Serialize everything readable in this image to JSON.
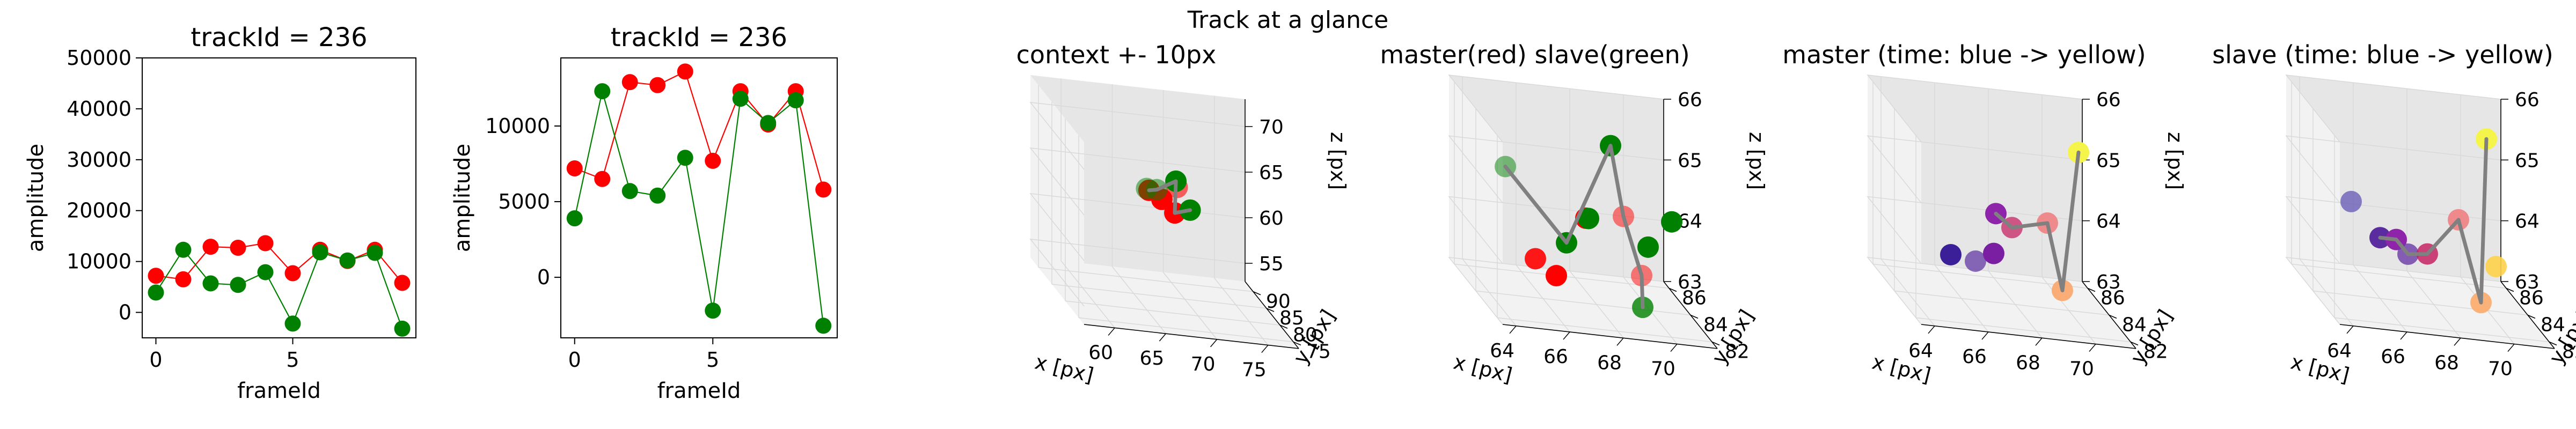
{
  "suptitle": "Track at a glance",
  "colors": {
    "master": "#ff0000",
    "slave": "#008000",
    "link": "#808080",
    "axis": "#000000",
    "pane": "#f2f2f2",
    "pane_dark": "#e6e6e6",
    "grid": "#d9d9d9"
  },
  "chart_data": [
    {
      "type": "line",
      "title": "trackId = 236",
      "xlabel": "frameId",
      "ylabel": "amplitude",
      "xlim": [
        -0.5,
        9.5
      ],
      "ylim": [
        -5000,
        50000
      ],
      "xticks": [
        0,
        5
      ],
      "yticks": [
        0,
        10000,
        20000,
        30000,
        40000,
        50000
      ],
      "x": [
        0,
        1,
        2,
        3,
        4,
        5,
        6,
        7,
        8,
        9
      ],
      "series": [
        {
          "color": "#ff0000",
          "values": [
            7200,
            6500,
            12900,
            12700,
            13600,
            7700,
            12300,
            10100,
            12300,
            5800
          ]
        },
        {
          "color": "#008000",
          "values": [
            3900,
            12300,
            5700,
            5400,
            7900,
            -2200,
            11800,
            10200,
            11700,
            -3200
          ]
        }
      ]
    },
    {
      "type": "line",
      "title": "trackId = 236",
      "xlabel": "frameId",
      "ylabel": "amplitude",
      "xlim": [
        -0.5,
        9.5
      ],
      "ylim": [
        -4000,
        14500
      ],
      "xticks": [
        0,
        5
      ],
      "yticks": [
        0,
        5000,
        10000
      ],
      "x": [
        0,
        1,
        2,
        3,
        4,
        5,
        6,
        7,
        8,
        9
      ],
      "series": [
        {
          "color": "#ff0000",
          "values": [
            7200,
            6500,
            12900,
            12700,
            13600,
            7700,
            12300,
            10100,
            12300,
            5800
          ]
        },
        {
          "color": "#008000",
          "values": [
            3900,
            12300,
            5700,
            5400,
            7900,
            -2200,
            11800,
            10200,
            11700,
            -3200
          ]
        }
      ]
    },
    {
      "type": "scatter3d",
      "title": "context +- 10px",
      "xlabel": "x [px]",
      "ylabel": "y [px]",
      "zlabel": "z [px]",
      "xlim": [
        57,
        78
      ],
      "ylim": [
        73,
        93
      ],
      "zlim": [
        53,
        73
      ],
      "xticks": [
        60,
        65,
        70,
        75
      ],
      "yticks": [
        75,
        80,
        85,
        90
      ],
      "zticks": [
        55,
        60,
        65,
        70
      ],
      "points": [
        {
          "x": 67.5,
          "y": 84,
          "z": 64,
          "color": "#ff0000",
          "alpha": 1
        },
        {
          "x": 68.5,
          "y": 83,
          "z": 63,
          "color": "#ff0000",
          "alpha": 1
        },
        {
          "x": 66.5,
          "y": 85,
          "z": 64.5,
          "color": "#ff0000",
          "alpha": 1
        },
        {
          "x": 69,
          "y": 84,
          "z": 65.5,
          "color": "#ff0000",
          "alpha": 0.6
        },
        {
          "x": 66,
          "y": 84,
          "z": 65,
          "color": "#008000",
          "alpha": 0.5
        },
        {
          "x": 69,
          "y": 84.5,
          "z": 66,
          "color": "#008000",
          "alpha": 1
        },
        {
          "x": 70,
          "y": 83,
          "z": 63.5,
          "color": "#008000",
          "alpha": 1
        },
        {
          "x": 67,
          "y": 84,
          "z": 65,
          "color": "#008000",
          "alpha": 0.5
        }
      ],
      "path": [
        [
          66.5,
          85,
          64.5
        ],
        [
          67,
          84,
          65
        ],
        [
          69,
          84.5,
          66
        ],
        [
          68.5,
          83,
          63
        ],
        [
          70,
          83,
          63.5
        ]
      ]
    },
    {
      "type": "scatter3d",
      "title": "master(red) slave(green)",
      "xlabel": "x [px]",
      "ylabel": "y [px]",
      "zlabel": "z [px]",
      "xlim": [
        63.5,
        71.5
      ],
      "ylim": [
        81.5,
        86.5
      ],
      "zlim": [
        63,
        66
      ],
      "xticks": [
        64,
        66,
        68,
        70
      ],
      "yticks": [
        82,
        84,
        86
      ],
      "zticks": [
        63,
        64,
        65,
        66
      ],
      "points": [
        {
          "x": 66.5,
          "y": 84,
          "z": 63.4,
          "color": "#ff0000",
          "alpha": 1
        },
        {
          "x": 65.8,
          "y": 84.2,
          "z": 63.6,
          "color": "#ff0000",
          "alpha": 0.9
        },
        {
          "x": 67.6,
          "y": 84,
          "z": 64.4,
          "color": "#ff0000",
          "alpha": 1
        },
        {
          "x": 68.4,
          "y": 82.5,
          "z": 64.8,
          "color": "#ff0000",
          "alpha": 0.5
        },
        {
          "x": 69.2,
          "y": 82.8,
          "z": 63.8,
          "color": "#ff0000",
          "alpha": 0.5
        },
        {
          "x": 65.2,
          "y": 85.5,
          "z": 64.8,
          "color": "#008000",
          "alpha": 0.5
        },
        {
          "x": 66.8,
          "y": 83.8,
          "z": 64.0,
          "color": "#008000",
          "alpha": 1
        },
        {
          "x": 67.5,
          "y": 83.5,
          "z": 64.5,
          "color": "#008000",
          "alpha": 1
        },
        {
          "x": 68.2,
          "y": 83.2,
          "z": 65.8,
          "color": "#008000",
          "alpha": 1
        },
        {
          "x": 69.6,
          "y": 83.2,
          "z": 64.2,
          "color": "#008000",
          "alpha": 1
        },
        {
          "x": 70.2,
          "y": 82.5,
          "z": 64.8,
          "color": "#008000",
          "alpha": 1
        },
        {
          "x": 69.0,
          "y": 82.2,
          "z": 63.4,
          "color": "#008000",
          "alpha": 0.8
        }
      ],
      "path": [
        [
          65.2,
          85.5,
          64.8
        ],
        [
          66.8,
          83.8,
          64.0
        ],
        [
          68.2,
          83.2,
          65.8
        ],
        [
          68.4,
          82.5,
          64.8
        ],
        [
          69.2,
          82.8,
          63.8
        ],
        [
          69.0,
          82.2,
          63.4
        ]
      ]
    },
    {
      "type": "scatter3d",
      "title": "master (time: blue -> yellow)",
      "xlabel": "x [px]",
      "ylabel": "y [px]",
      "zlabel": "z [px]",
      "xlim": [
        63.5,
        71.5
      ],
      "ylim": [
        81.5,
        86.5
      ],
      "zlim": [
        63,
        66
      ],
      "xticks": [
        64,
        66,
        68,
        70
      ],
      "yticks": [
        82,
        84,
        86
      ],
      "zticks": [
        63,
        64,
        65,
        66
      ],
      "points": [
        {
          "x": 65.8,
          "y": 84.5,
          "z": 63.6,
          "color": "#3b1f99",
          "alpha": 1
        },
        {
          "x": 66.6,
          "y": 84.2,
          "z": 63.6,
          "color": "#5a2ca0",
          "alpha": 0.7
        },
        {
          "x": 67.2,
          "y": 84.0,
          "z": 63.8,
          "color": "#7b1fa2",
          "alpha": 1
        },
        {
          "x": 67.2,
          "y": 83.8,
          "z": 64.5,
          "color": "#8e24aa",
          "alpha": 1
        },
        {
          "x": 67.8,
          "y": 83.8,
          "z": 64.3,
          "color": "#c2185b",
          "alpha": 0.7
        },
        {
          "x": 68.8,
          "y": 83.0,
          "z": 64.6,
          "color": "#ef7f82",
          "alpha": 0.9
        },
        {
          "x": 69.2,
          "y": 82.6,
          "z": 63.6,
          "color": "#fca56a",
          "alpha": 0.9
        },
        {
          "x": 70.2,
          "y": 83.6,
          "z": 65.7,
          "color": "#f4f44a",
          "alpha": 1
        }
      ],
      "path": [
        [
          67.2,
          83.8,
          64.5
        ],
        [
          67.8,
          83.8,
          64.3
        ],
        [
          68.8,
          83.0,
          64.6
        ],
        [
          69.2,
          82.6,
          63.6
        ],
        [
          70.2,
          83.6,
          65.7
        ]
      ]
    },
    {
      "type": "scatter3d",
      "title": "slave (time: blue -> yellow)",
      "xlabel": "x [px]",
      "ylabel": "y [px]",
      "zlabel": "z [px]",
      "xlim": [
        63.5,
        71.5
      ],
      "ylim": [
        81.5,
        86.5
      ],
      "zlim": [
        63,
        66
      ],
      "xticks": [
        64,
        66,
        68,
        70
      ],
      "yticks": [
        82,
        84,
        86
      ],
      "zticks": [
        63,
        64,
        65,
        66
      ],
      "points": [
        {
          "x": 65.4,
          "y": 85.2,
          "z": 64.3,
          "color": "#5a4bb0",
          "alpha": 0.7
        },
        {
          "x": 66.2,
          "y": 84.5,
          "z": 63.9,
          "color": "#5a2ca0",
          "alpha": 1
        },
        {
          "x": 66.6,
          "y": 84.0,
          "z": 64.0,
          "color": "#8e24aa",
          "alpha": 1
        },
        {
          "x": 67.0,
          "y": 83.9,
          "z": 63.8,
          "color": "#6a3aa8",
          "alpha": 0.8
        },
        {
          "x": 67.6,
          "y": 83.6,
          "z": 63.9,
          "color": "#c2185b",
          "alpha": 0.8
        },
        {
          "x": 68.6,
          "y": 83.2,
          "z": 64.6,
          "color": "#ef7f82",
          "alpha": 0.9
        },
        {
          "x": 69.2,
          "y": 82.6,
          "z": 63.4,
          "color": "#fcab6a",
          "alpha": 0.9
        },
        {
          "x": 70.0,
          "y": 83.2,
          "z": 63.9,
          "color": "#ffd24a",
          "alpha": 0.9
        },
        {
          "x": 69.8,
          "y": 83.6,
          "z": 65.9,
          "color": "#f4f44a",
          "alpha": 1
        }
      ],
      "path": [
        [
          66.2,
          84.5,
          63.9
        ],
        [
          66.6,
          84.0,
          64.0
        ],
        [
          67.0,
          83.9,
          63.8
        ],
        [
          67.6,
          83.6,
          63.9
        ],
        [
          68.6,
          83.2,
          64.6
        ],
        [
          69.2,
          82.6,
          63.4
        ],
        [
          69.8,
          83.6,
          65.9
        ]
      ]
    }
  ]
}
